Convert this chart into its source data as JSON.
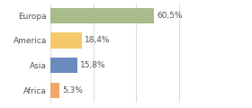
{
  "categories": [
    "Europa",
    "America",
    "Asia",
    "Africa"
  ],
  "values": [
    60.5,
    18.4,
    15.8,
    5.3
  ],
  "labels": [
    "60,5%",
    "18,4%",
    "15,8%",
    "5,3%"
  ],
  "bar_colors": [
    "#a8bb8a",
    "#f5c96a",
    "#6b8bbf",
    "#f0a86a"
  ],
  "background_color": "#ffffff",
  "xlim": [
    0,
    100
  ],
  "bar_height": 0.62,
  "label_fontsize": 6.5,
  "category_fontsize": 6.5,
  "grid_color": "#cccccc",
  "text_color": "#555555"
}
